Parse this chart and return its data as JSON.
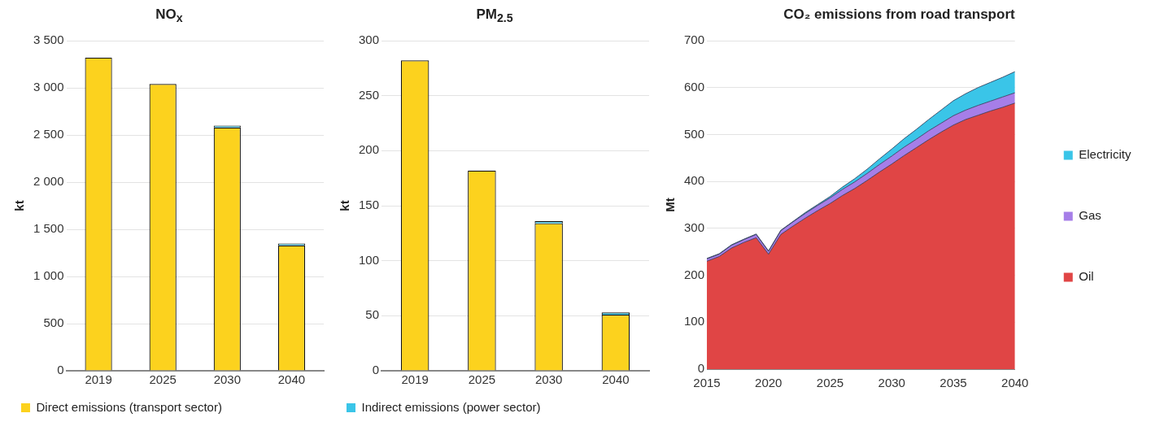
{
  "chart_data": [
    {
      "type": "bar",
      "title": "NO$_{x}$",
      "ylabel": "kt",
      "categories": [
        "2019",
        "2025",
        "2030",
        "2040"
      ],
      "stacked": true,
      "series": [
        {
          "name": "Direct emissions (transport sector)",
          "color": "#fcd21e",
          "values": [
            3320,
            3040,
            2580,
            1330
          ]
        },
        {
          "color": "#3ac5e8",
          "values": [
            0,
            0,
            20,
            20
          ]
        }
      ],
      "ylim": [
        0,
        3500
      ],
      "yticks": [
        {
          "value": 0,
          "label": "0"
        },
        {
          "value": 500,
          "label": "500"
        },
        {
          "value": 1000,
          "label": "1 000"
        },
        {
          "value": 1500,
          "label": "1 500"
        },
        {
          "value": 2000,
          "label": "2 000"
        },
        {
          "value": 2500,
          "label": "2 500"
        },
        {
          "value": 3000,
          "label": "3 000"
        },
        {
          "value": 3500,
          "label": "3 500"
        }
      ],
      "grid": "y",
      "legend": "bottom"
    },
    {
      "type": "bar",
      "title": "PM$_{2.5}$",
      "ylabel": "kt",
      "categories": [
        "2019",
        "2025",
        "2030",
        "2040"
      ],
      "stacked": true,
      "series": [
        {
          "color": "#fcd21e",
          "values": [
            282,
            182,
            134,
            51
          ]
        },
        {
          "name": "Indirect emissions (power sector)",
          "color": "#3ac5e8",
          "values": [
            0,
            0,
            2,
            2
          ]
        }
      ],
      "ylim": [
        0,
        300
      ],
      "yticks": [
        0,
        50,
        100,
        150,
        200,
        250,
        300
      ],
      "grid": "y",
      "legend": "bottom"
    },
    {
      "type": "area",
      "title": "CO₂ emissions from road transport",
      "ylabel": "Mt",
      "stacked": true,
      "x": [
        2015,
        2016,
        2017,
        2018,
        2019,
        2020,
        2021,
        2022,
        2023,
        2024,
        2025,
        2026,
        2027,
        2028,
        2029,
        2030,
        2031,
        2032,
        2033,
        2034,
        2035,
        2036,
        2037,
        2038,
        2039,
        2040
      ],
      "series": [
        {
          "name": "Oil",
          "color": "#e04545",
          "values": [
            230,
            240,
            258,
            270,
            280,
            245,
            287,
            305,
            322,
            338,
            353,
            370,
            385,
            402,
            420,
            437,
            455,
            472,
            489,
            505,
            520,
            532,
            541,
            550,
            558,
            567
          ]
        },
        {
          "name": "Gas",
          "color": "#a67ee8",
          "values": [
            5,
            5,
            6,
            6,
            7,
            6,
            8,
            9,
            10,
            11,
            12,
            13,
            14,
            15,
            16,
            17,
            18,
            18,
            19,
            19,
            20,
            20,
            21,
            21,
            22,
            22
          ]
        },
        {
          "name": "Electricity",
          "color": "#3ac5e8",
          "values": [
            1,
            1,
            1,
            1,
            1,
            1,
            1,
            1,
            2,
            2,
            3,
            5,
            7,
            9,
            12,
            15,
            18,
            21,
            24,
            28,
            32,
            35,
            38,
            40,
            42,
            45
          ]
        }
      ],
      "xlim": [
        2015,
        2040
      ],
      "xticks": [
        2015,
        2020,
        2025,
        2030,
        2035,
        2040
      ],
      "ylim": [
        0,
        700
      ],
      "yticks": [
        0,
        100,
        200,
        300,
        400,
        500,
        600,
        700
      ],
      "grid": "y",
      "legend": "right"
    }
  ]
}
